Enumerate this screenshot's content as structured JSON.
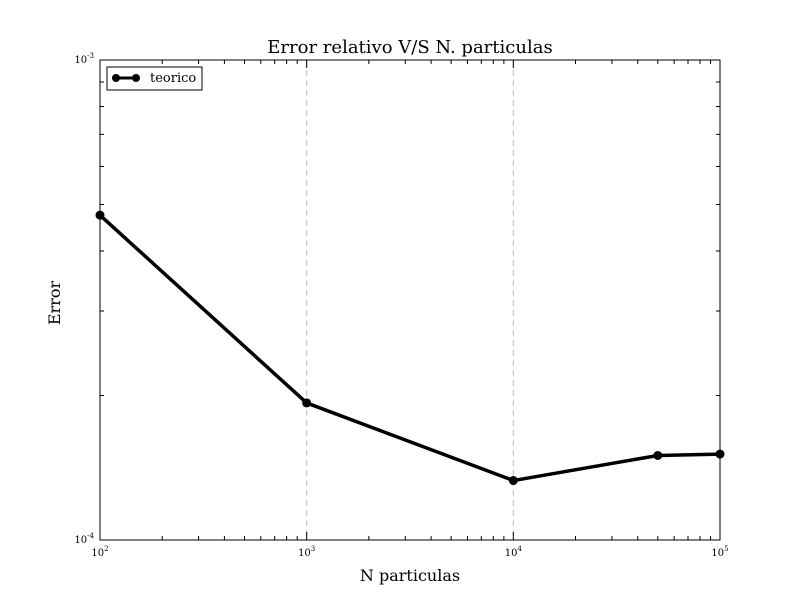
{
  "chart_data": {
    "type": "line",
    "title": "Error relativo V/S N. particulas",
    "xlabel": "N particulas",
    "ylabel": "Error",
    "x_scale": "log",
    "y_scale": "log",
    "xlim": [
      100,
      100000
    ],
    "ylim": [
      0.0001,
      0.001
    ],
    "x_ticks": [
      {
        "value": 100,
        "base": "10",
        "exp": "2"
      },
      {
        "value": 1000,
        "base": "10",
        "exp": "3"
      },
      {
        "value": 10000,
        "base": "10",
        "exp": "4"
      },
      {
        "value": 100000,
        "base": "10",
        "exp": "5"
      }
    ],
    "y_ticks": [
      {
        "value": 0.0001,
        "base": "10",
        "exp": "-4"
      },
      {
        "value": 0.001,
        "base": "10",
        "exp": "-3"
      }
    ],
    "vertical_grid_at": [
      1000,
      10000
    ],
    "grid_style": "dashed light gray, vertical only",
    "legend_position": "top-left",
    "series": [
      {
        "name": "teorico",
        "color": "#000000",
        "marker": "circle",
        "x": [
          100,
          1000,
          10000,
          50000,
          100000
        ],
        "y": [
          0.000475,
          0.000193,
          0.000133,
          0.00015,
          0.000151
        ]
      }
    ]
  }
}
